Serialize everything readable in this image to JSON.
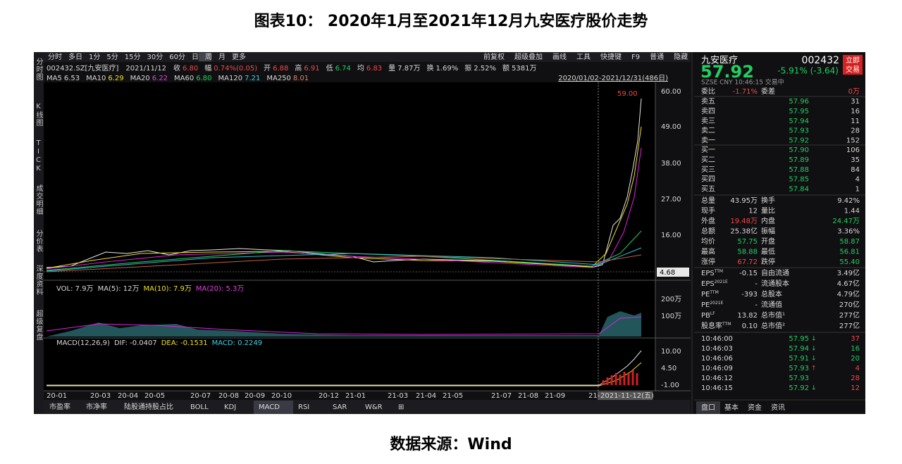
{
  "title": "图表10： 2020年1月至2021年12月九安医疗股价走势",
  "source": "数据来源：Wind",
  "toolbar": {
    "left": [
      "分时",
      "多日",
      "1分",
      "5分",
      "15分",
      "30分",
      "60分",
      "日",
      "周",
      "月",
      "更多"
    ],
    "right": [
      "前复权",
      "超级叠加",
      "画线",
      "工具",
      "快捷键",
      "F9",
      "普通",
      "隐藏"
    ]
  },
  "info": [
    [
      "002432.SZ[九安医疗]"
    ],
    [
      "2021/11/12"
    ],
    [
      "收",
      "6.80"
    ],
    [
      "幅",
      "0.74%(0.05)"
    ],
    [
      "开",
      "6.88"
    ],
    [
      "高",
      "6.91"
    ],
    [
      "低",
      "6.74"
    ],
    [
      "均",
      "6.83"
    ],
    [
      "量",
      "7.87万"
    ],
    [
      "换",
      "1.69%"
    ],
    [
      "振",
      "2.52%"
    ],
    [
      "额",
      "5381万"
    ]
  ],
  "ma": [
    [
      "MA5",
      "6.53"
    ],
    [
      "MA10",
      "6.29"
    ],
    [
      "MA20",
      "6.22"
    ],
    [
      "MA60",
      "6.80"
    ],
    [
      "MA120",
      "7.21"
    ],
    [
      "MA250",
      "8.01"
    ]
  ],
  "range": "2020/01/02-2021/12/31(486日)",
  "sidebar": [
    "分时图",
    "K线图",
    "TICK",
    "成交明细",
    "分价表",
    "深度资料",
    "超级复盘"
  ],
  "price_axis": [
    "60.00",
    "49.00",
    "38.00",
    "27.00",
    "16.00"
  ],
  "current_tag": "4.68",
  "peak_label": "59.00",
  "vol_header": [
    "VOL: 7.9万",
    "MA(5): 12万",
    "MA(10): 7.9万",
    "MA(20): 5.3万"
  ],
  "vol_axis": [
    "200万",
    "100万"
  ],
  "macd_header": [
    "MACD(12,26,9)",
    "DIF: -0.0407",
    "DEA: -0.1531",
    "MACD: 0.2249"
  ],
  "macd_axis": [
    "10.00",
    "4.50",
    "-1.00"
  ],
  "dates": [
    "20-01",
    "20-03",
    "20-04",
    "20-05",
    "20-07",
    "20-08",
    "20-09",
    "20-10",
    "20-12",
    "21-01",
    "21-03",
    "21-04",
    "21-05",
    "21-07",
    "21-08",
    "21-09",
    "21-",
    "2021-11-12(五)"
  ],
  "bottom_tabs": [
    "市盈率",
    "市净率",
    "陆股通持股占比",
    "BOLL",
    "KDJ",
    "MACD",
    "RSI",
    "SAR",
    "W&R",
    "⊞"
  ],
  "quote": {
    "name": "九安医疗",
    "code": "002432",
    "button": [
      "立即",
      "交易"
    ],
    "price": "57.92",
    "change": "-5.91% (-3.64)",
    "status": "SZSE  CNY  10:46:15  交易中"
  },
  "order_ratio": [
    "委比",
    "-1.71%",
    "委差",
    "0万"
  ],
  "book": [
    [
      "卖五",
      "57.96",
      "31"
    ],
    [
      "卖四",
      "57.95",
      "16"
    ],
    [
      "卖三",
      "57.94",
      "11"
    ],
    [
      "卖二",
      "57.93",
      "28"
    ],
    [
      "卖一",
      "57.92",
      "152"
    ],
    [
      "买一",
      "57.90",
      "106"
    ],
    [
      "买二",
      "57.89",
      "35"
    ],
    [
      "买三",
      "57.88",
      "84"
    ],
    [
      "买四",
      "57.85",
      "4"
    ],
    [
      "买五",
      "57.84",
      "1"
    ]
  ],
  "stats": [
    [
      "总量",
      "43.95万",
      "换手",
      "9.42%"
    ],
    [
      "现手",
      "12",
      "量比",
      "1.44"
    ],
    [
      "外盘",
      "19.48万",
      "内盘",
      "24.47万"
    ],
    [
      "总额",
      "25.38亿",
      "振幅",
      "3.36%"
    ],
    [
      "均价",
      "57.75",
      "开盘",
      "58.87"
    ],
    [
      "最高",
      "58.88",
      "最低",
      "56.81"
    ],
    [
      "涨停",
      "67.72",
      "跌停",
      "55.40"
    ]
  ],
  "fundamentals": [
    [
      {
        "text": "EPS",
        "sup": "TTM"
      },
      "-0.15",
      "自由流通",
      "3.49亿"
    ],
    [
      {
        "text": "EPS",
        "sup": "2021E"
      },
      "-",
      "流通股本",
      "4.67亿"
    ],
    [
      {
        "text": "PE",
        "sup": "TTM"
      },
      "-393",
      "总股本",
      "4.79亿"
    ],
    [
      {
        "text": "PE",
        "sup": "2021E"
      },
      "-",
      "流通值",
      "270亿"
    ],
    [
      {
        "text": "PB",
        "sup": "LF"
      },
      "13.82",
      "总市值¹",
      "277亿"
    ],
    [
      {
        "text": "股息率",
        "sup": "TTM"
      },
      "0.10",
      "总市值²",
      "277亿"
    ]
  ],
  "trades": [
    {
      "time": "10:46:00",
      "price": "57.95",
      "dir": "↓",
      "volume": "37"
    },
    {
      "time": "10:46:03",
      "price": "57.94",
      "dir": "↓",
      "volume": "16"
    },
    {
      "time": "10:46:06",
      "price": "57.91",
      "dir": "↓",
      "volume": "20"
    },
    {
      "time": "10:46:09",
      "price": "57.93",
      "dir": "↑",
      "volume": "4"
    },
    {
      "time": "10:46:12",
      "price": "57.93",
      "volume": "28"
    },
    {
      "time": "10:46:15",
      "price": "57.92",
      "dir": "↓",
      "volume": "12"
    }
  ],
  "panel_tabs": [
    "盘口",
    "基本",
    "资金",
    "资讯"
  ]
}
